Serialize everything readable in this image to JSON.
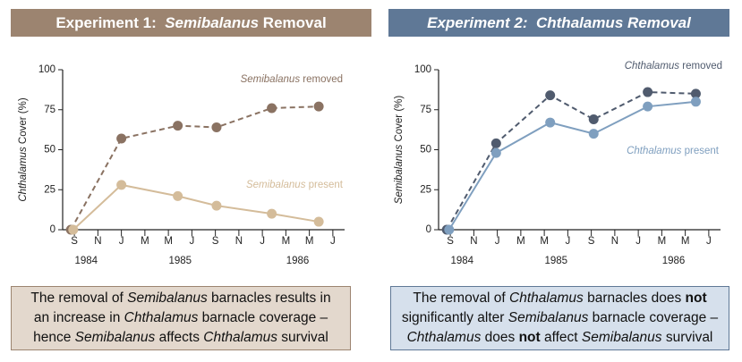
{
  "chart_data": [
    {
      "type": "line",
      "title": [
        {
          "text": "Experiment 1:  "
        },
        {
          "text": "Semibalanus",
          "italic": true
        },
        {
          "text": " Removal"
        }
      ],
      "ylabel": "Chthalamus Cover (%)",
      "ylim": [
        0,
        100
      ],
      "yticks": [
        0,
        25,
        50,
        75,
        100
      ],
      "xlim": [
        8,
        32
      ],
      "xticks": [
        {
          "value": 9,
          "label": "S"
        },
        {
          "value": 11,
          "label": "N"
        },
        {
          "value": 13,
          "label": "J"
        },
        {
          "value": 15,
          "label": "M"
        },
        {
          "value": 17,
          "label": "M"
        },
        {
          "value": 19,
          "label": "J"
        },
        {
          "value": 21,
          "label": "S"
        },
        {
          "value": 23,
          "label": "N"
        },
        {
          "value": 25,
          "label": "J"
        },
        {
          "value": 27,
          "label": "M"
        },
        {
          "value": 29,
          "label": "M"
        },
        {
          "value": 31,
          "label": "J"
        }
      ],
      "year_labels": [
        {
          "value": 10,
          "label": "1984"
        },
        {
          "value": 18,
          "label": "1985"
        },
        {
          "value": 28,
          "label": "1986"
        }
      ],
      "header_color": "#9c8470",
      "box_color": "#e3d8cd",
      "series": [
        {
          "name": "Semibalanus removed",
          "color": "#8a7262",
          "dashed": true,
          "x": [
            8.7,
            13,
            17.8,
            21.1,
            25.8,
            29.8
          ],
          "values": [
            0,
            57,
            65,
            64,
            76,
            77
          ]
        },
        {
          "name": "Semibalanus present",
          "color": "#d4bc9a",
          "dashed": false,
          "x": [
            8.9,
            13,
            17.8,
            21.1,
            25.8,
            29.8
          ],
          "values": [
            0,
            28,
            21,
            15,
            10,
            5
          ]
        }
      ],
      "caption": [
        [
          {
            "text": "The removal of "
          },
          {
            "text": "Semibalanus",
            "italic": true
          },
          {
            "text": " barnacles results in"
          }
        ],
        [
          {
            "text": "an increase in "
          },
          {
            "text": "Chthalamus",
            "italic": true
          },
          {
            "text": " barnacle coverage –"
          }
        ],
        [
          {
            "text": "hence "
          },
          {
            "text": "Semibalanus",
            "italic": true
          },
          {
            "text": " affects "
          },
          {
            "text": "Chthalamus",
            "italic": true
          },
          {
            "text": " survival"
          }
        ]
      ]
    },
    {
      "type": "line",
      "title": [
        {
          "text": "Experiment 2:  Chthalamus Removal",
          "italic": true
        }
      ],
      "ylabel": "Semibalanus Cover (%)",
      "ylim": [
        0,
        100
      ],
      "yticks": [
        0,
        25,
        50,
        75,
        100
      ],
      "xlim": [
        8,
        32
      ],
      "xticks": [
        {
          "value": 9,
          "label": "S"
        },
        {
          "value": 11,
          "label": "N"
        },
        {
          "value": 13,
          "label": "J"
        },
        {
          "value": 15,
          "label": "M"
        },
        {
          "value": 17,
          "label": "M"
        },
        {
          "value": 19,
          "label": "J"
        },
        {
          "value": 21,
          "label": "S"
        },
        {
          "value": 23,
          "label": "N"
        },
        {
          "value": 25,
          "label": "J"
        },
        {
          "value": 27,
          "label": "M"
        },
        {
          "value": 29,
          "label": "M"
        },
        {
          "value": 31,
          "label": "J"
        }
      ],
      "year_labels": [
        {
          "value": 10,
          "label": "1984"
        },
        {
          "value": 18,
          "label": "1985"
        },
        {
          "value": 28,
          "label": "1986"
        }
      ],
      "header_color": "#5f7896",
      "box_color": "#d6e0ec",
      "series": [
        {
          "name": "Chthalamus removed",
          "color": "#505b6e",
          "dashed": true,
          "x": [
            8.7,
            12.9,
            17.5,
            21.2,
            25.8,
            29.9
          ],
          "values": [
            0,
            54,
            84,
            69,
            86,
            85
          ]
        },
        {
          "name": "Chthalamus present",
          "color": "#7f9fbf",
          "dashed": false,
          "x": [
            8.9,
            12.9,
            17.5,
            21.2,
            25.8,
            29.9
          ],
          "values": [
            0,
            48,
            67,
            60,
            77,
            80
          ]
        }
      ],
      "caption": [
        [
          {
            "text": "The removal of "
          },
          {
            "text": "Chthalamus",
            "italic": true
          },
          {
            "text": " barnacles does "
          },
          {
            "text": "not",
            "bold": true
          }
        ],
        [
          {
            "text": "significantly alter "
          },
          {
            "text": "Semibalanus",
            "italic": true
          },
          {
            "text": " barnacle coverage –"
          }
        ],
        [
          {
            "text": "Chthalamus",
            "italic": true
          },
          {
            "text": " does "
          },
          {
            "text": "not",
            "bold": true
          },
          {
            "text": " affect "
          },
          {
            "text": "Semibalanus",
            "italic": true
          },
          {
            "text": " survival"
          }
        ]
      ]
    }
  ]
}
